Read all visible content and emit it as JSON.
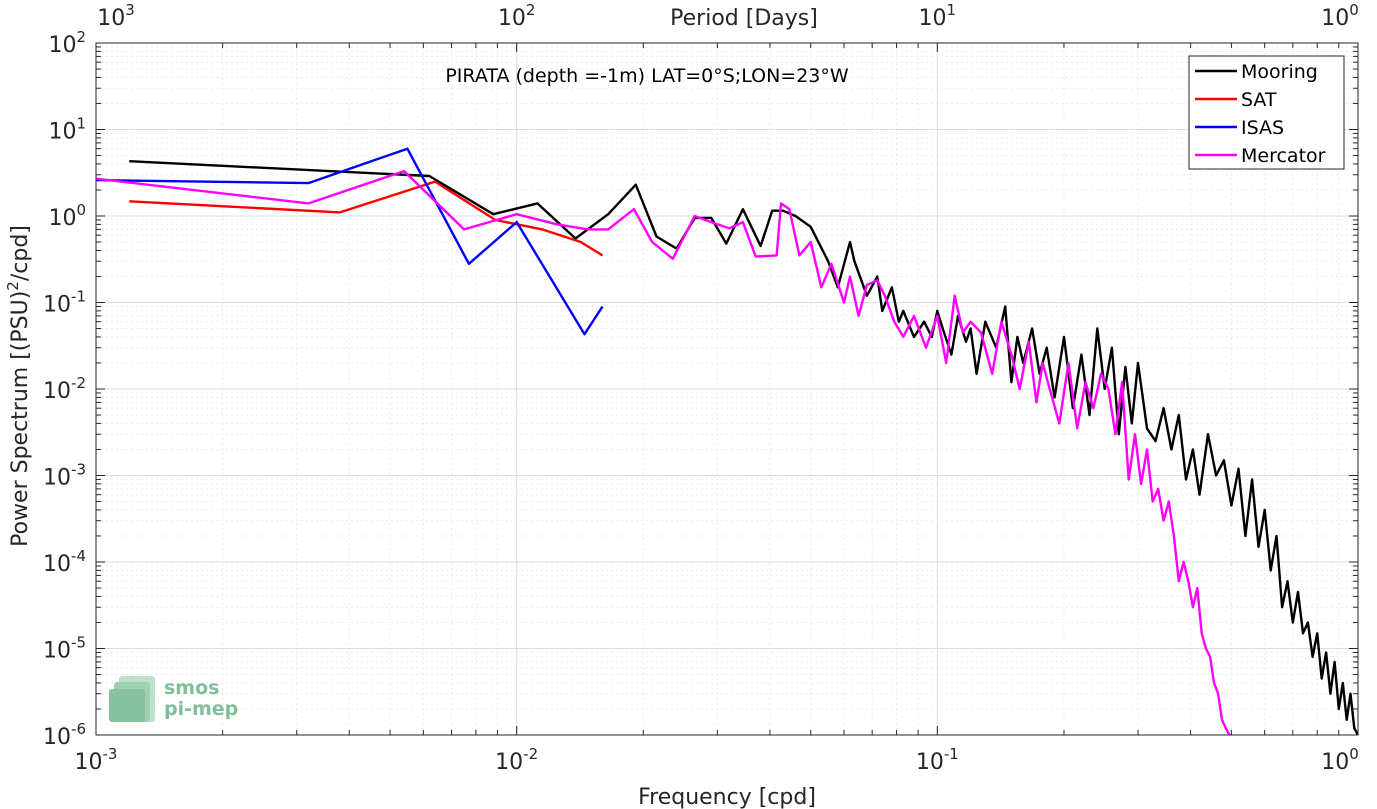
{
  "chart_data": {
    "type": "line",
    "title": "PIRATA (depth =-1m) LAT=0°S;LON=23°W",
    "xlabel": "Frequency [cpd]",
    "ylabel": "Power Spectrum [(PSU)²/cpd]",
    "ylabel_parts": {
      "base": "Power Spectrum [(PSU)",
      "sup": "2",
      "tail": "/cpd]"
    },
    "top_xlabel": "Period [Days]",
    "xscale": "log",
    "yscale": "log",
    "xlim": [
      0.001,
      1
    ],
    "ylim": [
      1e-06,
      100
    ],
    "x_ticks": [
      0.001,
      0.01,
      0.1,
      1
    ],
    "x_tick_labels": [
      {
        "base": "10",
        "exp": "-3"
      },
      {
        "base": "10",
        "exp": "-2"
      },
      {
        "base": "10",
        "exp": "-1"
      },
      {
        "base": "10",
        "exp": "0"
      }
    ],
    "y_ticks": [
      1e-06,
      1e-05,
      0.0001,
      0.001,
      0.01,
      0.1,
      1,
      10,
      100
    ],
    "y_tick_labels": [
      {
        "base": "10",
        "exp": "-6"
      },
      {
        "base": "10",
        "exp": "-5"
      },
      {
        "base": "10",
        "exp": "-4"
      },
      {
        "base": "10",
        "exp": "-3"
      },
      {
        "base": "10",
        "exp": "-2"
      },
      {
        "base": "10",
        "exp": "-1"
      },
      {
        "base": "10",
        "exp": "0"
      },
      {
        "base": "10",
        "exp": "1"
      },
      {
        "base": "10",
        "exp": "2"
      }
    ],
    "top_ticks_period_days": [
      1000,
      100,
      10,
      1
    ],
    "top_tick_labels": [
      {
        "base": "10",
        "exp": "3"
      },
      {
        "base": "10",
        "exp": "2"
      },
      {
        "base": "10",
        "exp": "1"
      },
      {
        "base": "10",
        "exp": "0"
      }
    ],
    "grid": true,
    "minor_grid": true,
    "legend_position": "top-right",
    "series": [
      {
        "name": "Mooring",
        "color": "#000000",
        "x": [
          0.0012,
          0.0062,
          0.0088,
          0.0112,
          0.0138,
          0.0165,
          0.0192,
          0.0215,
          0.024,
          0.0265,
          0.029,
          0.0315,
          0.0345,
          0.038,
          0.0405,
          0.043,
          0.046,
          0.05,
          0.055,
          0.058,
          0.062,
          0.0635,
          0.068,
          0.072,
          0.074,
          0.078,
          0.081,
          0.083,
          0.088,
          0.093,
          0.097,
          0.1,
          0.103,
          0.108,
          0.112,
          0.117,
          0.12,
          0.124,
          0.13,
          0.138,
          0.145,
          0.15,
          0.155,
          0.16,
          0.168,
          0.175,
          0.182,
          0.19,
          0.2,
          0.21,
          0.22,
          0.23,
          0.24,
          0.25,
          0.26,
          0.27,
          0.28,
          0.29,
          0.3,
          0.315,
          0.33,
          0.345,
          0.36,
          0.375,
          0.39,
          0.405,
          0.42,
          0.44,
          0.46,
          0.48,
          0.5,
          0.52,
          0.54,
          0.56,
          0.58,
          0.6,
          0.62,
          0.64,
          0.66,
          0.68,
          0.7,
          0.72,
          0.74,
          0.76,
          0.78,
          0.8,
          0.82,
          0.84,
          0.86,
          0.88,
          0.9,
          0.92,
          0.94,
          0.96,
          0.98,
          1.0
        ],
        "y": [
          4.3,
          2.9,
          1.05,
          1.4,
          0.55,
          1.05,
          2.3,
          0.58,
          0.42,
          0.95,
          0.95,
          0.48,
          1.2,
          0.45,
          1.15,
          1.15,
          1.0,
          0.75,
          0.3,
          0.15,
          0.5,
          0.3,
          0.12,
          0.2,
          0.08,
          0.15,
          0.06,
          0.08,
          0.04,
          0.06,
          0.04,
          0.08,
          0.05,
          0.025,
          0.07,
          0.035,
          0.05,
          0.015,
          0.06,
          0.03,
          0.09,
          0.012,
          0.04,
          0.02,
          0.05,
          0.015,
          0.03,
          0.008,
          0.04,
          0.006,
          0.025,
          0.005,
          0.05,
          0.01,
          0.03,
          0.003,
          0.018,
          0.004,
          0.02,
          0.0035,
          0.0025,
          0.006,
          0.002,
          0.005,
          0.0009,
          0.002,
          0.0006,
          0.003,
          0.001,
          0.0015,
          0.00045,
          0.0012,
          0.0002,
          0.0009,
          0.00015,
          0.0004,
          8e-05,
          0.0002,
          3e-05,
          6e-05,
          2e-05,
          4.5e-05,
          1.5e-05,
          2e-05,
          8e-06,
          1.5e-05,
          4.5e-06,
          9e-06,
          3e-06,
          7e-06,
          2e-06,
          4e-06,
          1.5e-06,
          3e-06,
          1.2e-06,
          1e-06
        ]
      },
      {
        "name": "SAT",
        "color": "#ff0000",
        "x": [
          0.0012,
          0.0038,
          0.0064,
          0.0089,
          0.0115,
          0.0142,
          0.016
        ],
        "y": [
          1.48,
          1.1,
          2.5,
          0.9,
          0.7,
          0.5,
          0.35
        ]
      },
      {
        "name": "ISAS",
        "color": "#0000ff",
        "x": [
          0.001,
          0.0032,
          0.0055,
          0.0077,
          0.01,
          0.0145,
          0.016
        ],
        "y": [
          2.6,
          2.4,
          6.0,
          0.28,
          0.85,
          0.043,
          0.09
        ]
      },
      {
        "name": "Mercator",
        "color": "#ff00ff",
        "x": [
          0.001,
          0.0032,
          0.0054,
          0.0075,
          0.01,
          0.0125,
          0.0148,
          0.0165,
          0.019,
          0.021,
          0.0235,
          0.0265,
          0.029,
          0.032,
          0.0345,
          0.037,
          0.0415,
          0.0425,
          0.0445,
          0.047,
          0.05,
          0.053,
          0.056,
          0.06,
          0.062,
          0.065,
          0.068,
          0.072,
          0.075,
          0.079,
          0.083,
          0.088,
          0.094,
          0.1,
          0.105,
          0.11,
          0.115,
          0.12,
          0.127,
          0.135,
          0.142,
          0.15,
          0.157,
          0.165,
          0.172,
          0.178,
          0.185,
          0.195,
          0.205,
          0.215,
          0.225,
          0.235,
          0.245,
          0.255,
          0.265,
          0.275,
          0.285,
          0.295,
          0.305,
          0.315,
          0.325,
          0.335,
          0.345,
          0.355,
          0.365,
          0.375,
          0.385,
          0.395,
          0.405,
          0.415,
          0.425,
          0.435,
          0.445,
          0.455,
          0.465,
          0.475,
          0.485,
          0.495
        ],
        "y": [
          2.7,
          1.4,
          3.3,
          0.7,
          1.05,
          0.8,
          0.7,
          0.7,
          1.2,
          0.5,
          0.32,
          1.0,
          0.85,
          0.72,
          0.85,
          0.34,
          0.35,
          1.4,
          1.2,
          0.35,
          0.5,
          0.15,
          0.28,
          0.1,
          0.2,
          0.07,
          0.16,
          0.18,
          0.12,
          0.06,
          0.04,
          0.07,
          0.03,
          0.07,
          0.02,
          0.12,
          0.045,
          0.06,
          0.045,
          0.015,
          0.06,
          0.025,
          0.01,
          0.035,
          0.007,
          0.02,
          0.01,
          0.004,
          0.02,
          0.0035,
          0.012,
          0.006,
          0.015,
          0.01,
          0.003,
          0.012,
          0.0009,
          0.003,
          0.0008,
          0.002,
          0.0005,
          0.0007,
          0.0003,
          0.0005,
          0.0002,
          6e-05,
          0.0001,
          6e-05,
          3e-05,
          5e-05,
          1.5e-05,
          1e-05,
          8e-06,
          4e-06,
          3e-06,
          1.5e-06,
          1.2e-06,
          1e-06
        ]
      }
    ]
  },
  "logo": {
    "line1": "smos",
    "line2": "pi-mep"
  }
}
